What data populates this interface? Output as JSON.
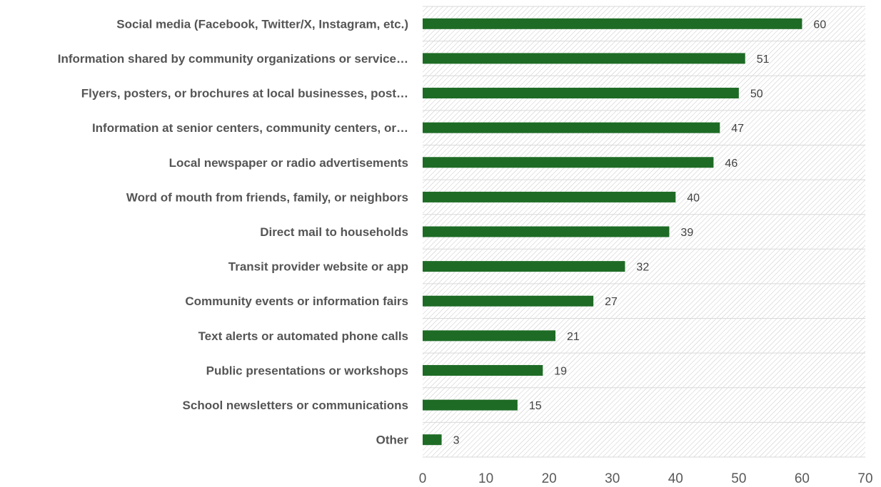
{
  "chart_data": {
    "type": "bar",
    "orientation": "horizontal",
    "categories": [
      "Social media (Facebook, Twitter/X, Instagram, etc.)",
      "Information shared by community organizations or service…",
      "Flyers, posters, or brochures at local businesses, post…",
      "Information at senior centers, community centers, or…",
      "Local newspaper or radio advertisements",
      "Word of mouth from friends, family, or neighbors",
      "Direct mail to households",
      "Transit provider website or app",
      "Community events or information fairs",
      "Text alerts or automated phone calls",
      "Public presentations or workshops",
      "School newsletters or communications",
      "Other"
    ],
    "values": [
      60,
      51,
      50,
      47,
      46,
      40,
      39,
      32,
      27,
      21,
      19,
      15,
      3
    ],
    "xlim": [
      0,
      70
    ],
    "xticks": [
      "0",
      "10",
      "20",
      "30",
      "40",
      "50",
      "60",
      "70"
    ],
    "title": "",
    "xlabel": "",
    "ylabel": "",
    "grid": "horizontal row separators",
    "legend": "none",
    "colors": {
      "bar": "#1e6b25",
      "background_hatch": "#c8c8c8",
      "row_divider": "#d9d9d9"
    }
  }
}
